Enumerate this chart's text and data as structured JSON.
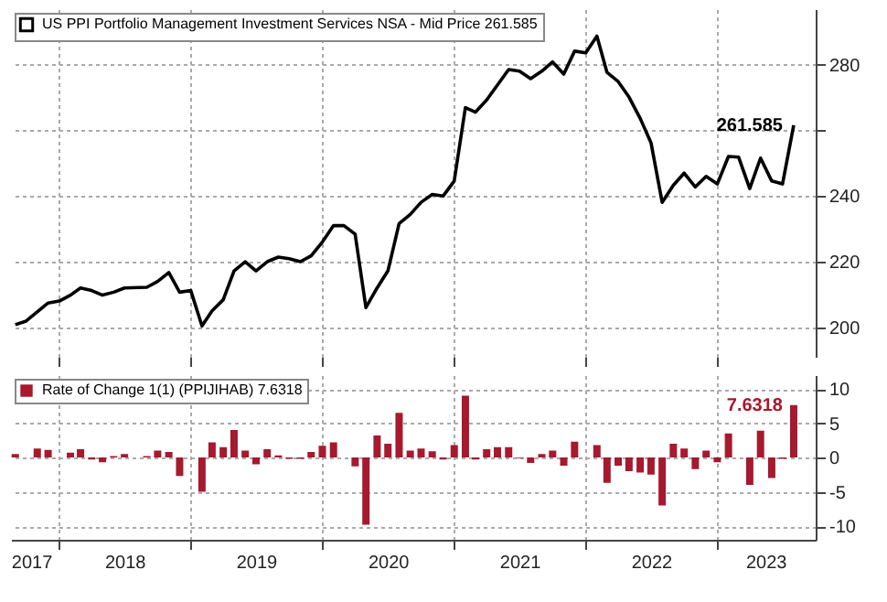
{
  "chart_data": [
    {
      "type": "line",
      "x": [
        "2017-09",
        "2017-10",
        "2017-12",
        "2018-01",
        "2018-02",
        "2018-03",
        "2018-04",
        "2018-05",
        "2018-06",
        "2018-07",
        "2018-09",
        "2018-10",
        "2018-11",
        "2018-12",
        "2019-01",
        "2019-02",
        "2019-03",
        "2019-04",
        "2019-05",
        "2019-06",
        "2019-07",
        "2019-08",
        "2019-09",
        "2019-10",
        "2019-11",
        "2019-12",
        "2020-01",
        "2020-02",
        "2020-03",
        "2020-04",
        "2020-05",
        "2020-06",
        "2020-07",
        "2020-08",
        "2020-09",
        "2020-10",
        "2020-11",
        "2020-12",
        "2021-01",
        "2021-02",
        "2021-03",
        "2021-04",
        "2021-06",
        "2021-07",
        "2021-08",
        "2021-09",
        "2021-10",
        "2021-11",
        "2021-12",
        "2022-01",
        "2022-02",
        "2022-03",
        "2022-04",
        "2022-05",
        "2022-06",
        "2022-07",
        "2022-08",
        "2022-09",
        "2022-10",
        "2022-11",
        "2022-12",
        "2023-01",
        "2023-02",
        "2023-03",
        "2023-04",
        "2023-05",
        "2023-06",
        "2023-07",
        "2023-08"
      ],
      "series": [
        {
          "name": "US PPI Portfolio Management Investment Services NSA - Mid Price 261.585",
          "color": "#000000",
          "values": [
            200.8,
            201.9,
            207.4,
            208,
            209.8,
            212,
            211.2,
            209.8,
            210.7,
            212,
            212.2,
            214,
            216.7,
            210.7,
            211.2,
            200.4,
            205,
            208.4,
            217.2,
            220,
            217.2,
            220,
            221.4,
            220.9,
            220,
            221.8,
            226,
            231,
            231,
            228.4,
            206,
            212,
            217.2,
            231.6,
            234.4,
            238.1,
            240.5,
            240,
            244.6,
            267,
            265.6,
            269.3,
            278.6,
            278.1,
            275.8,
            278.1,
            280.9,
            277.2,
            284.2,
            283.7,
            288.8,
            277.7,
            274.9,
            270.2,
            263.7,
            256.3,
            238.1,
            243.3,
            247,
            242.8,
            246,
            243.7,
            252.1,
            251.9,
            242.3,
            251.6,
            244.6,
            243.7,
            261.585
          ]
        }
      ],
      "xlim": [
        "2017-08-20",
        "2023-10-01"
      ],
      "xticks": [
        {
          "value": "2018-01",
          "label": null
        },
        {
          "value": "2019-01",
          "label": null
        },
        {
          "value": "2020-01",
          "label": null
        },
        {
          "value": "2021-01",
          "label": null
        },
        {
          "value": "2022-01",
          "label": null
        },
        {
          "value": "2023-01",
          "label": null
        }
      ],
      "ylim": [
        191,
        297
      ],
      "yticks": [
        200,
        220,
        240,
        {
          "value": 260,
          "label": null
        },
        280
      ],
      "grid": true,
      "legend": "top left",
      "tick_labels": "y",
      "annotations": [
        {
          "text": "261.585",
          "x": "2023-08",
          "y": 261.585
        }
      ]
    },
    {
      "type": "bar",
      "x": [
        "2017-09",
        "2017-10",
        "2017-11",
        "2017-12",
        "2018-01",
        "2018-02",
        "2018-03",
        "2018-04",
        "2018-05",
        "2018-06",
        "2018-07",
        "2018-08",
        "2018-09",
        "2018-10",
        "2018-11",
        "2018-12",
        "2019-01",
        "2019-02",
        "2019-03",
        "2019-04",
        "2019-05",
        "2019-06",
        "2019-07",
        "2019-08",
        "2019-09",
        "2019-10",
        "2019-11",
        "2019-12",
        "2020-01",
        "2020-02",
        "2020-03",
        "2020-04",
        "2020-05",
        "2020-06",
        "2020-07",
        "2020-08",
        "2020-09",
        "2020-10",
        "2020-11",
        "2020-12",
        "2021-01",
        "2021-02",
        "2021-03",
        "2021-04",
        "2021-05",
        "2021-06",
        "2021-07",
        "2021-08",
        "2021-09",
        "2021-10",
        "2021-11",
        "2021-12",
        "2022-01",
        "2022-02",
        "2022-03",
        "2022-04",
        "2022-05",
        "2022-06",
        "2022-07",
        "2022-08",
        "2022-09",
        "2022-10",
        "2022-11",
        "2022-12",
        "2023-01",
        "2023-02",
        "2023-03",
        "2023-04",
        "2023-05",
        "2023-06",
        "2023-07",
        "2023-08"
      ],
      "series": [
        {
          "name": "Rate of Change 1(1) (PPIJIHAB) 7.6318",
          "color": "#a6192e",
          "values": [
            0.5,
            0,
            1.3,
            1.1,
            0,
            0.7,
            1.2,
            -0.3,
            -0.7,
            0.2,
            0.5,
            0,
            0.2,
            1,
            0.8,
            -2.7,
            0,
            -5,
            2.2,
            1.5,
            4,
            1,
            -1,
            1.2,
            0.3,
            -0.2,
            -0.2,
            0.8,
            1.7,
            2.2,
            0,
            -1.3,
            -9.8,
            3.2,
            2,
            6.5,
            1,
            1.3,
            0.9,
            -0.3,
            1.8,
            9,
            -0.3,
            1.2,
            1.5,
            1.5,
            -0.1,
            -0.8,
            0.5,
            1,
            -1.2,
            2.3,
            0,
            1.8,
            -3.7,
            -1.2,
            -2,
            -2.2,
            -2.5,
            -7,
            2,
            1.3,
            -1.7,
            1,
            -0.7,
            3.5,
            0,
            -4,
            3.9,
            -3,
            -0.2,
            7.6318
          ]
        }
      ],
      "xlim": [
        "2017-08-20",
        "2023-10-01"
      ],
      "xticks": [
        {
          "value": "2017-10-15",
          "label": "2017"
        },
        {
          "value": "2018-01",
          "label": null
        },
        {
          "value": "2018-07",
          "label": "2018"
        },
        {
          "value": "2019-01",
          "label": null
        },
        {
          "value": "2019-07",
          "label": "2019"
        },
        {
          "value": "2020-01",
          "label": null
        },
        {
          "value": "2020-07",
          "label": "2020"
        },
        {
          "value": "2021-01",
          "label": null
        },
        {
          "value": "2021-07",
          "label": "2021"
        },
        {
          "value": "2022-01",
          "label": null
        },
        {
          "value": "2022-07",
          "label": "2022"
        },
        {
          "value": "2023-01",
          "label": null
        },
        {
          "value": "2023-05-15",
          "label": "2023"
        }
      ],
      "ylim": [
        -12,
        12
      ],
      "yticks": [
        -10,
        -5,
        0,
        5,
        10
      ],
      "grid": true,
      "legend": "top left",
      "annotations": [
        {
          "text": "7.6318",
          "x": "2023-08",
          "y": 7.6318
        }
      ]
    }
  ]
}
